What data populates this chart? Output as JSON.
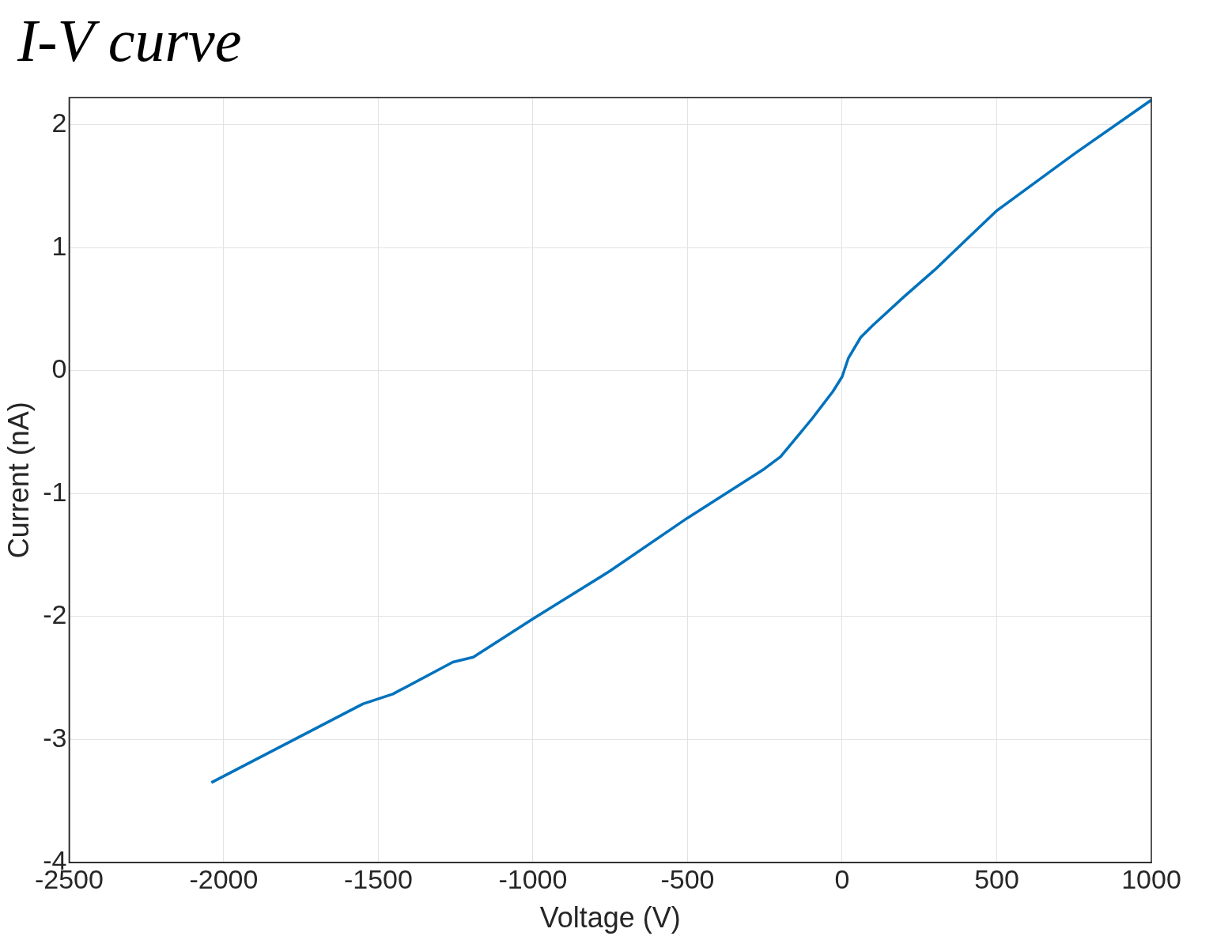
{
  "chart_data": {
    "type": "line",
    "title": "I-V curve",
    "xlabel": "Voltage (V)",
    "ylabel": "Current (nA)",
    "x": [
      -2040,
      -1550,
      -1453,
      -1259,
      -1193,
      -1001,
      -751,
      -501,
      -252,
      -199,
      -100,
      -30,
      0,
      20,
      60,
      100,
      200,
      300,
      400,
      500,
      750,
      1000
    ],
    "series": [
      {
        "color": "#0072bd",
        "values": [
          -3.35,
          -2.71,
          -2.63,
          -2.37,
          -2.33,
          -2.02,
          -1.63,
          -1.2,
          -0.8,
          -0.7,
          -0.4,
          -0.17,
          -0.05,
          0.1,
          0.27,
          0.37,
          0.6,
          0.82,
          1.06,
          1.3,
          1.76,
          2.2
        ]
      }
    ],
    "xlim": [
      -2500,
      1000
    ],
    "xticks": [
      -2500,
      -2000,
      -1500,
      -1000,
      -500,
      0,
      500,
      1000
    ],
    "ylim": [
      -4,
      2.22
    ],
    "yticks": [
      -4,
      -3,
      -2,
      -1,
      0,
      1,
      2
    ],
    "grid": true,
    "legend": false,
    "marker": "none",
    "line_style": "solid"
  }
}
